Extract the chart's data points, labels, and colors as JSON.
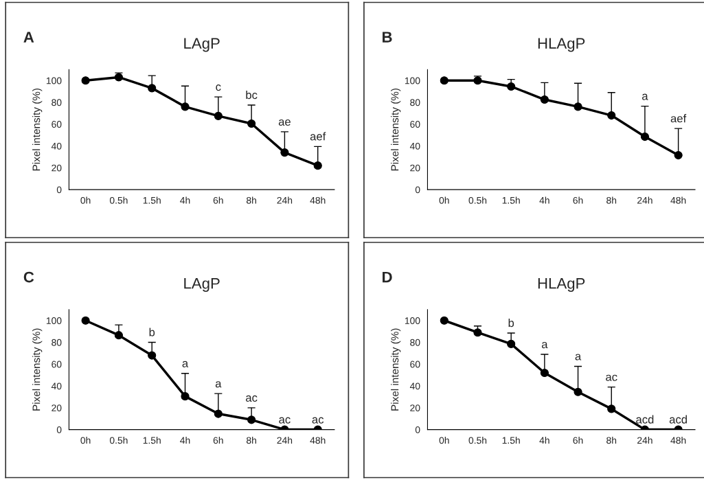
{
  "chart_data": [
    {
      "type": "line",
      "title": "LAgP",
      "ylabel": "Pixel intensity (%)",
      "categories": [
        "0h",
        "0.5h",
        "1.5h",
        "4h",
        "6h",
        "8h",
        "24h",
        "48h"
      ],
      "series": [
        {
          "color": "#000000",
          "values": [
            100,
            103,
            93,
            76,
            67.5,
            60.5,
            34,
            22
          ],
          "errors": [
            null,
            [
              103,
              107
            ],
            [
              93,
              104.5
            ],
            [
              76,
              95
            ],
            [
              67.5,
              85
            ],
            [
              60.5,
              77.5
            ],
            [
              34,
              53
            ],
            [
              22,
              39.5
            ]
          ]
        }
      ],
      "ylim": [
        0,
        110
      ],
      "yticks": [
        0,
        20,
        40,
        60,
        80,
        100
      ],
      "marker": "circle",
      "line_style": "solid",
      "annotations": [
        "A",
        {
          "text": "c",
          "x": "6h",
          "y": 85
        },
        {
          "text": "bc",
          "x": "8h",
          "y": 77.5
        },
        {
          "text": "ae",
          "x": "24h",
          "y": 53
        },
        {
          "text": "aef",
          "x": "48h",
          "y": 39.5
        }
      ]
    },
    {
      "type": "line",
      "title": "HLAgP",
      "ylabel": "Pixel intensity (%)",
      "categories": [
        "0h",
        "0.5h",
        "1.5h",
        "4h",
        "6h",
        "8h",
        "24h",
        "48h"
      ],
      "series": [
        {
          "color": "#000000",
          "values": [
            100,
            100,
            94.5,
            82.5,
            76,
            68,
            48.5,
            31.5
          ],
          "errors": [
            null,
            [
              100,
              104
            ],
            [
              94.5,
              101
            ],
            [
              82.5,
              98
            ],
            [
              76,
              97.5
            ],
            [
              68,
              89
            ],
            [
              48.5,
              76.5
            ],
            [
              31.5,
              56
            ]
          ]
        }
      ],
      "ylim": [
        0,
        110
      ],
      "yticks": [
        0,
        20,
        40,
        60,
        80,
        100
      ],
      "marker": "circle",
      "line_style": "solid",
      "annotations": [
        "B",
        {
          "text": "a",
          "x": "24h",
          "y": 76.5
        },
        {
          "text": "aef",
          "x": "48h",
          "y": 56
        }
      ]
    },
    {
      "type": "line",
      "title": "LAgP",
      "ylabel": "Pixel intensity (%)",
      "categories": [
        "0h",
        "0.5h",
        "1.5h",
        "4h",
        "6h",
        "8h",
        "24h",
        "48h"
      ],
      "series": [
        {
          "color": "#000000",
          "values": [
            100,
            86.5,
            68,
            30.5,
            14.5,
            9,
            0,
            0
          ],
          "errors": [
            null,
            [
              86.5,
              96
            ],
            [
              68,
              80
            ],
            [
              30.5,
              51.5
            ],
            [
              14.5,
              33
            ],
            [
              9,
              20
            ],
            null,
            null
          ]
        }
      ],
      "ylim": [
        0,
        110
      ],
      "yticks": [
        0,
        20,
        40,
        60,
        80,
        100
      ],
      "marker": "circle",
      "line_style": "solid",
      "annotations": [
        "C",
        {
          "text": "b",
          "x": "1.5h",
          "y": 80
        },
        {
          "text": "a",
          "x": "4h",
          "y": 51.5
        },
        {
          "text": "a",
          "x": "6h",
          "y": 33
        },
        {
          "text": "ac",
          "x": "8h",
          "y": 20
        },
        {
          "text": "ac",
          "x": "24h",
          "y": 0
        },
        {
          "text": "ac",
          "x": "48h",
          "y": 0
        }
      ]
    },
    {
      "type": "line",
      "title": "HLAgP",
      "ylabel": "Pixel intensity (%)",
      "categories": [
        "0h",
        "0.5h",
        "1.5h",
        "4h",
        "6h",
        "8h",
        "24h",
        "48h"
      ],
      "series": [
        {
          "color": "#000000",
          "values": [
            100,
            89,
            78.5,
            52,
            34.5,
            19,
            0,
            0
          ],
          "errors": [
            null,
            [
              89,
              95
            ],
            [
              78.5,
              88.5
            ],
            [
              52,
              69
            ],
            [
              34.5,
              58
            ],
            [
              19,
              39
            ],
            null,
            null
          ]
        }
      ],
      "ylim": [
        0,
        110
      ],
      "yticks": [
        0,
        20,
        40,
        60,
        80,
        100
      ],
      "marker": "circle",
      "line_style": "solid",
      "annotations": [
        "D",
        {
          "text": "b",
          "x": "1.5h",
          "y": 88.5
        },
        {
          "text": "a",
          "x": "4h",
          "y": 69
        },
        {
          "text": "a",
          "x": "6h",
          "y": 58
        },
        {
          "text": "ac",
          "x": "8h",
          "y": 39
        },
        {
          "text": "acd",
          "x": "24h",
          "y": 0
        },
        {
          "text": "acd",
          "x": "48h",
          "y": 0
        }
      ]
    }
  ]
}
